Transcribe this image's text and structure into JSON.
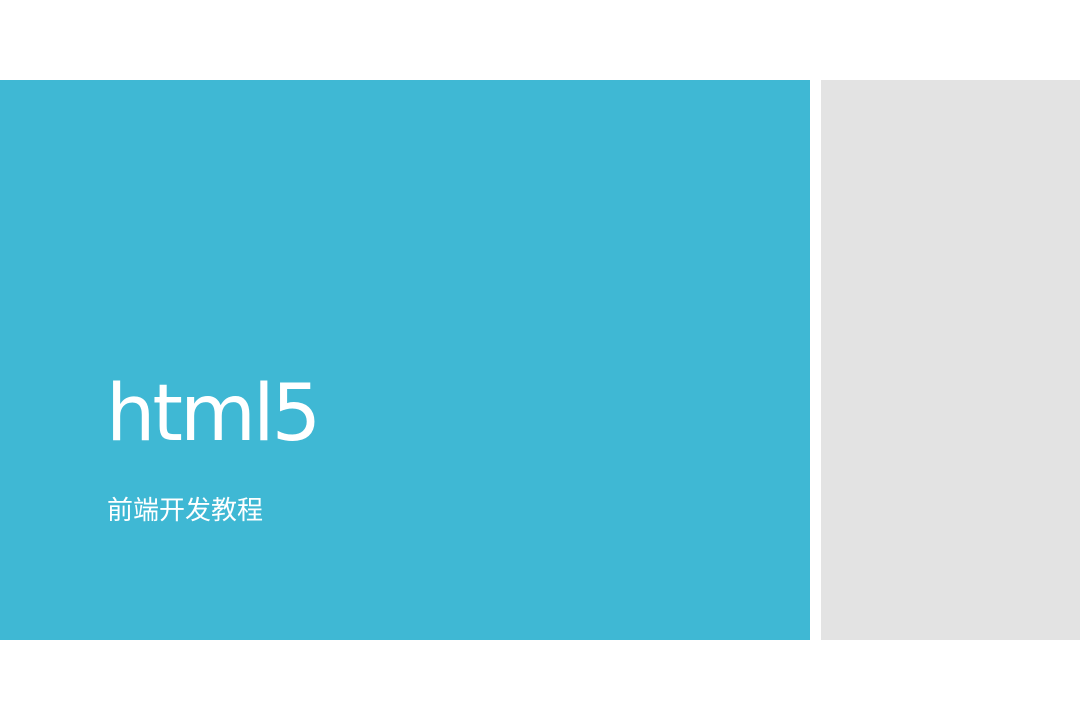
{
  "slide": {
    "title": "html5",
    "subtitle": "前端开发教程"
  },
  "colors": {
    "background": "#ffffff",
    "title_panel": "#3fb8d4",
    "side_panel": "#e3e3e3",
    "text": "#ffffff"
  }
}
